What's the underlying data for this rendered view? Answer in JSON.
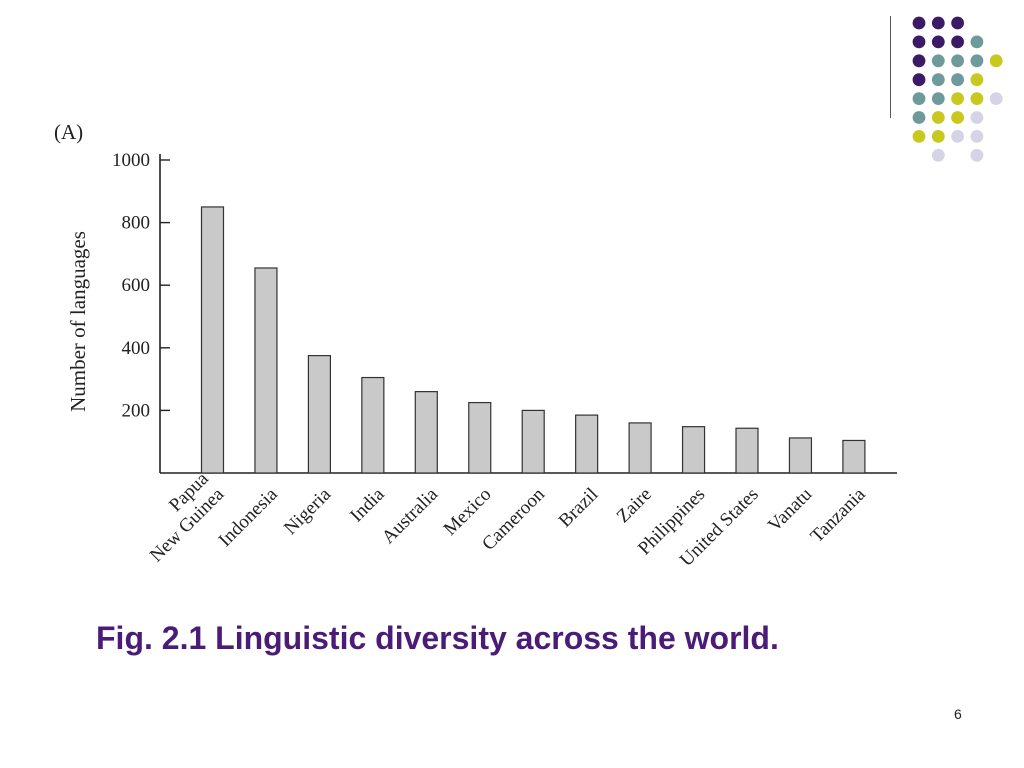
{
  "slide": {
    "panel_label": "(A)",
    "caption": "Fig. 2.1 Linguistic diversity across the world.",
    "page_number": "6"
  },
  "decor": {
    "dot_colors": {
      "purple": "#3d1a66",
      "teal": "#6f9a9b",
      "yellow": "#c8c81e",
      "lavender": "#d4d4e6"
    },
    "divider_color": "#555555"
  },
  "chart_data": {
    "type": "bar",
    "title": "",
    "xlabel": "",
    "ylabel": "Number of languages",
    "ylim": [
      0,
      1000
    ],
    "yticks": [
      200,
      400,
      600,
      800,
      1000
    ],
    "categories": [
      [
        "Papua",
        "New Guinea"
      ],
      [
        "Indonesia"
      ],
      [
        "Nigeria"
      ],
      [
        "India"
      ],
      [
        "Australia"
      ],
      [
        "Mexico"
      ],
      [
        "Cameroon"
      ],
      [
        "Brazil"
      ],
      [
        "Zaire"
      ],
      [
        "Philippines"
      ],
      [
        "United States"
      ],
      [
        "Vanatu"
      ],
      [
        "Tanzania"
      ]
    ],
    "values": [
      850,
      655,
      375,
      305,
      260,
      225,
      200,
      185,
      160,
      148,
      143,
      112,
      104
    ],
    "grid": false,
    "bar_color": "#c9c9c9"
  }
}
